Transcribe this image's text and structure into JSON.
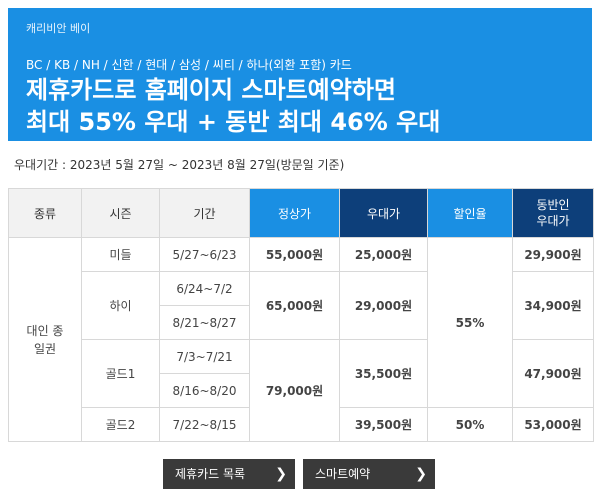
{
  "banner": {
    "brand": "캐리비안 베이",
    "cards": "BC / KB / NH / 신한 / 현대 / 삼성 / 씨티 / 하나(외환 포함) 카드",
    "headline_1": "제휴카드로 홈페이지 스마트예약하면",
    "headline_2": "최대 55% 우대 + 동반 최대 46% 우대"
  },
  "period": "우대기간 : 2023년 5월 27일 ~ 2023년 8월 27일(방문일 기준)",
  "table": {
    "headers": {
      "type": "종류",
      "season": "시즌",
      "dates": "기간",
      "regular": "정상가",
      "discounted": "우대가",
      "rate": "할인율",
      "companion": "동반인 우대가"
    },
    "type_label": "대인 종일권",
    "seasons": {
      "middle": "미들",
      "high": "하이",
      "gold1": "골드1",
      "gold2": "골드2"
    },
    "dates": [
      "5/27~6/23",
      "6/24~7/2",
      "8/21~8/27",
      "7/3~7/21",
      "8/16~8/20",
      "7/22~8/15"
    ],
    "regular": [
      "55,000원",
      "65,000원",
      "79,000원"
    ],
    "discounted": [
      "25,000원",
      "29,000원",
      "35,500원",
      "39,500원"
    ],
    "rates": [
      "55%",
      "50%"
    ],
    "companion": [
      "29,900원",
      "34,900원",
      "47,900원",
      "53,000원"
    ]
  },
  "buttons": {
    "card_list": "제휴카드 목록",
    "smart_reservation": "스마트예약",
    "arrow_glyph": "❯"
  },
  "colors": {
    "banner": "#1a8fe3",
    "header_blue": "#1a8fe3",
    "header_navy": "#0d3f7a",
    "accent_text": "#1a6fc7",
    "button": "#3a3a3a"
  }
}
